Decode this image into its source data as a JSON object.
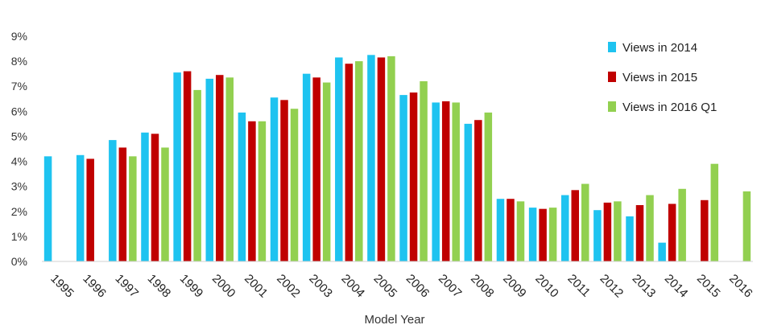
{
  "chart_data": {
    "type": "bar",
    "title": "",
    "xlabel": "Model Year",
    "ylabel": "",
    "ylim": [
      0,
      9
    ],
    "y_unit": "%",
    "y_ticks": [
      "0%",
      "1%",
      "2%",
      "3%",
      "4%",
      "5%",
      "6%",
      "7%",
      "8%",
      "9%"
    ],
    "grid": false,
    "legend_position": "top-right",
    "categories": [
      "1995",
      "1996",
      "1997",
      "1998",
      "1999",
      "2000",
      "2001",
      "2002",
      "2003",
      "2004",
      "2005",
      "2006",
      "2007",
      "2008",
      "2009",
      "2010",
      "2011",
      "2012",
      "2013",
      "2014",
      "2015",
      "2016"
    ],
    "series": [
      {
        "name": "Views in 2014",
        "color": "#1ec3f0",
        "values": [
          4.2,
          4.25,
          4.85,
          5.15,
          7.55,
          7.3,
          5.95,
          6.55,
          7.5,
          8.15,
          8.25,
          6.65,
          6.35,
          5.5,
          2.5,
          2.15,
          2.65,
          2.05,
          1.8,
          0.75,
          null,
          null
        ]
      },
      {
        "name": "Views in 2015",
        "color": "#c00000",
        "values": [
          null,
          4.1,
          4.55,
          5.1,
          7.6,
          7.45,
          5.6,
          6.45,
          7.35,
          7.9,
          8.15,
          6.75,
          6.4,
          5.65,
          2.5,
          2.1,
          2.85,
          2.35,
          2.25,
          2.3,
          2.45,
          null
        ]
      },
      {
        "name": "Views in 2016 Q1",
        "color": "#92d050",
        "values": [
          null,
          null,
          4.2,
          4.55,
          6.85,
          7.35,
          5.6,
          6.1,
          7.15,
          8.0,
          8.2,
          7.2,
          6.35,
          5.95,
          2.4,
          2.15,
          3.1,
          2.4,
          2.65,
          2.9,
          3.9,
          2.8
        ]
      }
    ]
  }
}
